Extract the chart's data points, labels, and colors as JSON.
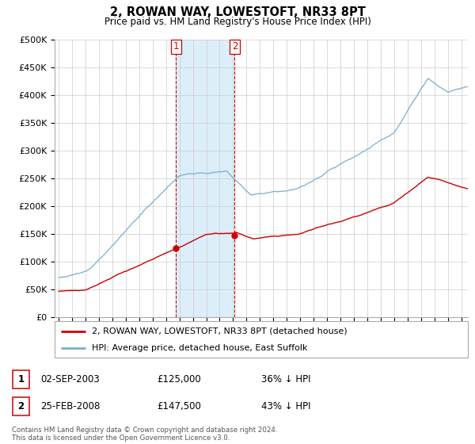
{
  "title": "2, ROWAN WAY, LOWESTOFT, NR33 8PT",
  "subtitle": "Price paid vs. HM Land Registry's House Price Index (HPI)",
  "property_label": "2, ROWAN WAY, LOWESTOFT, NR33 8PT (detached house)",
  "hpi_label": "HPI: Average price, detached house, East Suffolk",
  "transaction1": {
    "label": "1",
    "date": "02-SEP-2003",
    "price": 125000,
    "pct": "36% ↓ HPI"
  },
  "transaction2": {
    "label": "2",
    "date": "25-FEB-2008",
    "price": 147500,
    "pct": "43% ↓ HPI"
  },
  "t1_year": 2003.75,
  "t2_year": 2008.12,
  "property_color": "#cc0000",
  "hpi_color": "#7aadcf",
  "highlight_color": "#dceef9",
  "vline_color": "#cc0000",
  "footer": "Contains HM Land Registry data © Crown copyright and database right 2024.\nThis data is licensed under the Open Government Licence v3.0.",
  "ylim": [
    0,
    500000
  ],
  "yticks": [
    0,
    50000,
    100000,
    150000,
    200000,
    250000,
    300000,
    350000,
    400000,
    450000,
    500000
  ],
  "xmin": 1994.7,
  "xmax": 2025.5
}
